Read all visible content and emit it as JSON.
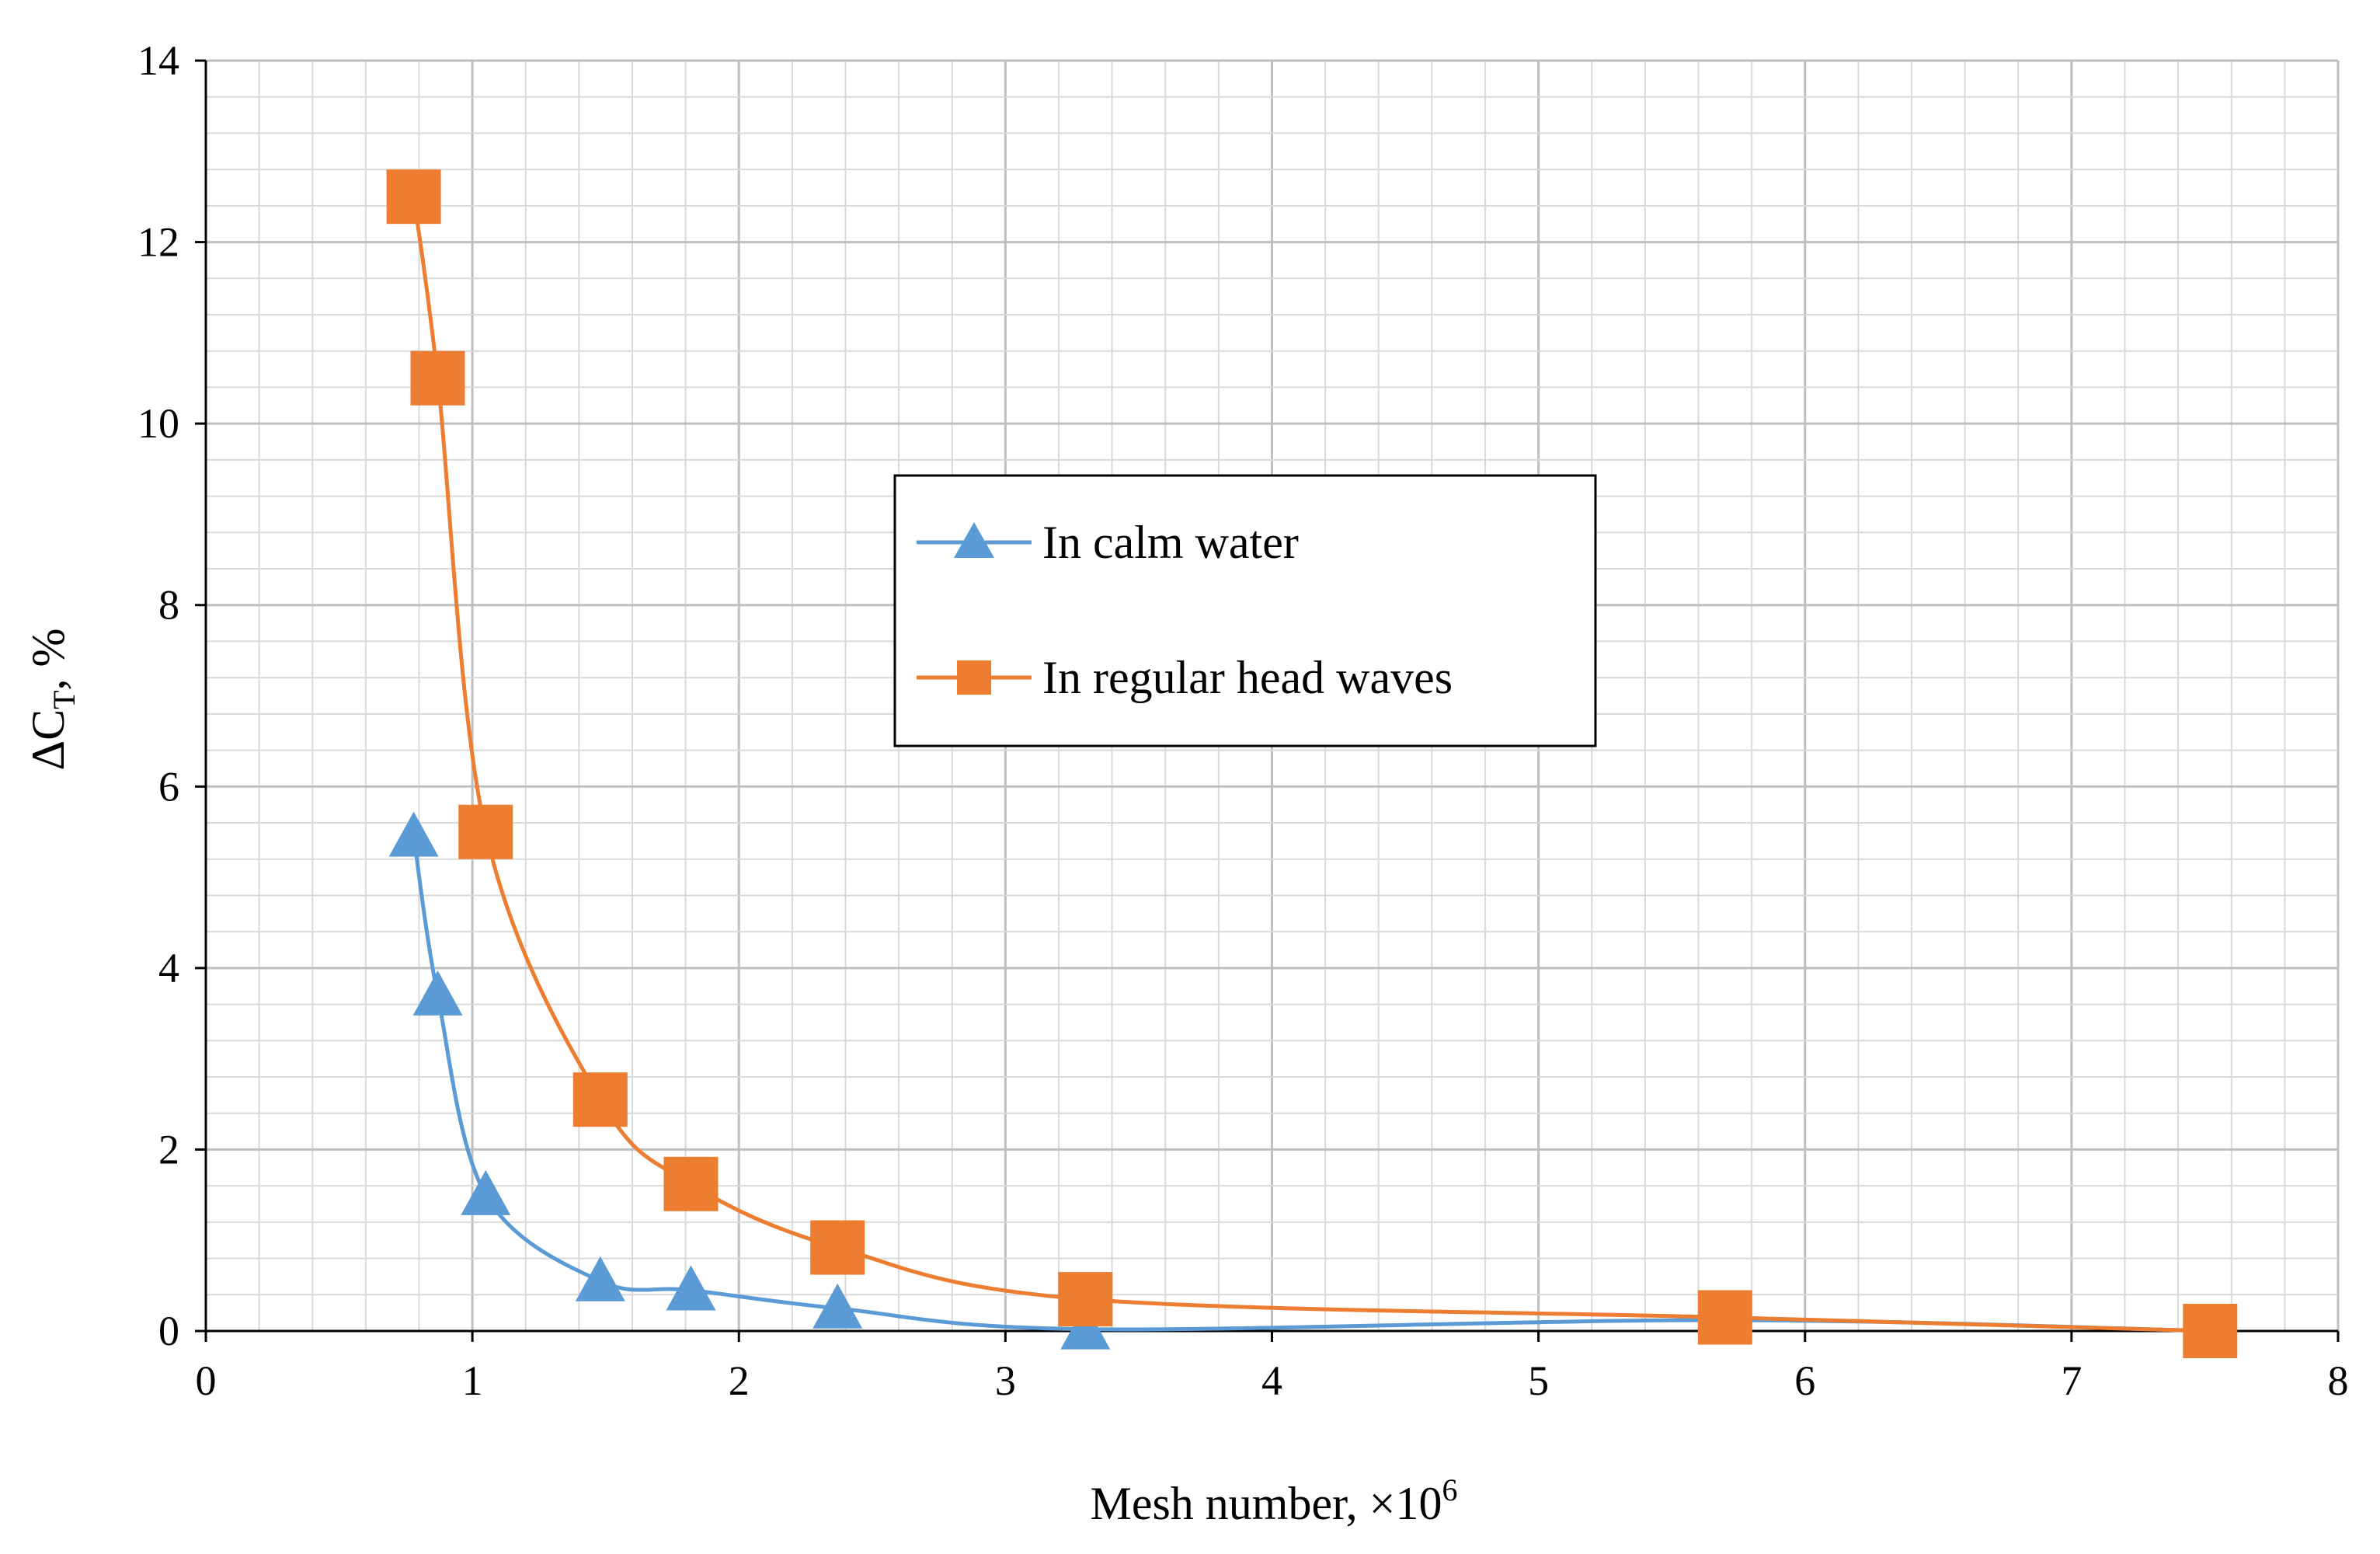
{
  "chart_data": {
    "type": "line",
    "title": "",
    "xlabel": "Mesh number, ×10",
    "xlabel_sup": "6",
    "ylabel": "ΔC",
    "ylabel_sub": "T",
    "ylabel_suffix": ", %",
    "xlim": [
      0,
      8
    ],
    "ylim": [
      0,
      14
    ],
    "xticks": [
      0,
      1,
      2,
      3,
      4,
      5,
      6,
      7,
      8
    ],
    "yticks": [
      0,
      2,
      4,
      6,
      8,
      10,
      12,
      14
    ],
    "grid": true,
    "smooth": true,
    "legend_position": "center",
    "series": [
      {
        "name": "In calm water",
        "color": "#5b9bd5",
        "marker": "triangle",
        "x": [
          0.78,
          0.87,
          1.05,
          1.48,
          1.82,
          2.37,
          3.3,
          5.7,
          7.52
        ],
        "y": [
          5.45,
          3.7,
          1.5,
          0.55,
          0.45,
          0.25,
          0.02,
          0.12,
          0.0
        ]
      },
      {
        "name": "In regular head waves",
        "color": "#ed7d31",
        "marker": "square",
        "x": [
          0.78,
          0.87,
          1.05,
          1.48,
          1.82,
          2.37,
          3.3,
          5.7,
          7.52
        ],
        "y": [
          12.5,
          10.5,
          5.5,
          2.55,
          1.62,
          0.92,
          0.35,
          0.15,
          0.0
        ]
      }
    ]
  }
}
